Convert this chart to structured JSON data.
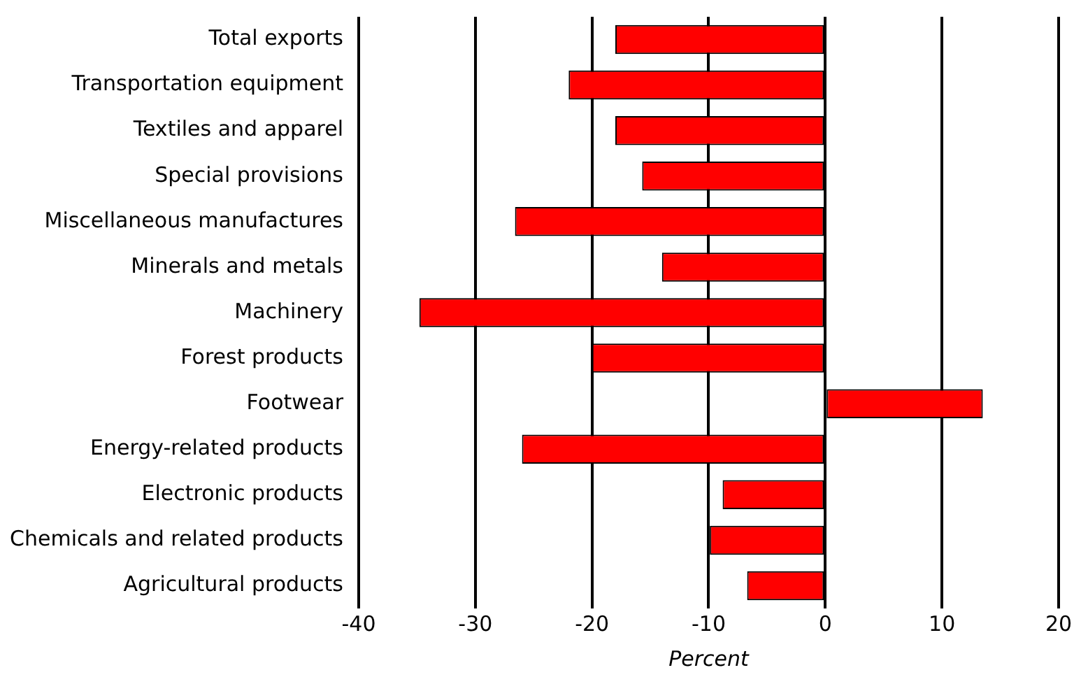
{
  "chart_data": {
    "type": "bar",
    "orientation": "horizontal",
    "xlabel": "Percent",
    "categories": [
      "Total exports",
      "Transportation equipment",
      "Textiles and apparel",
      "Special provisions",
      "Miscellaneous manufactures",
      "Minerals and metals",
      "Machinery",
      "Forest products",
      "Footwear",
      "Energy-related products",
      "Electronic products",
      "Chemicals and related products",
      "Agricultural products"
    ],
    "values": [
      -18,
      -22,
      -18,
      -15.7,
      -26.6,
      -14,
      -34.8,
      -20,
      13.5,
      -26,
      -8.8,
      -9.9,
      -6.7
    ],
    "color": "#ff0000",
    "xlim": [
      -40,
      20
    ],
    "xticks": [
      -40,
      -30,
      -20,
      -10,
      0,
      10,
      20
    ],
    "grid": "x"
  }
}
